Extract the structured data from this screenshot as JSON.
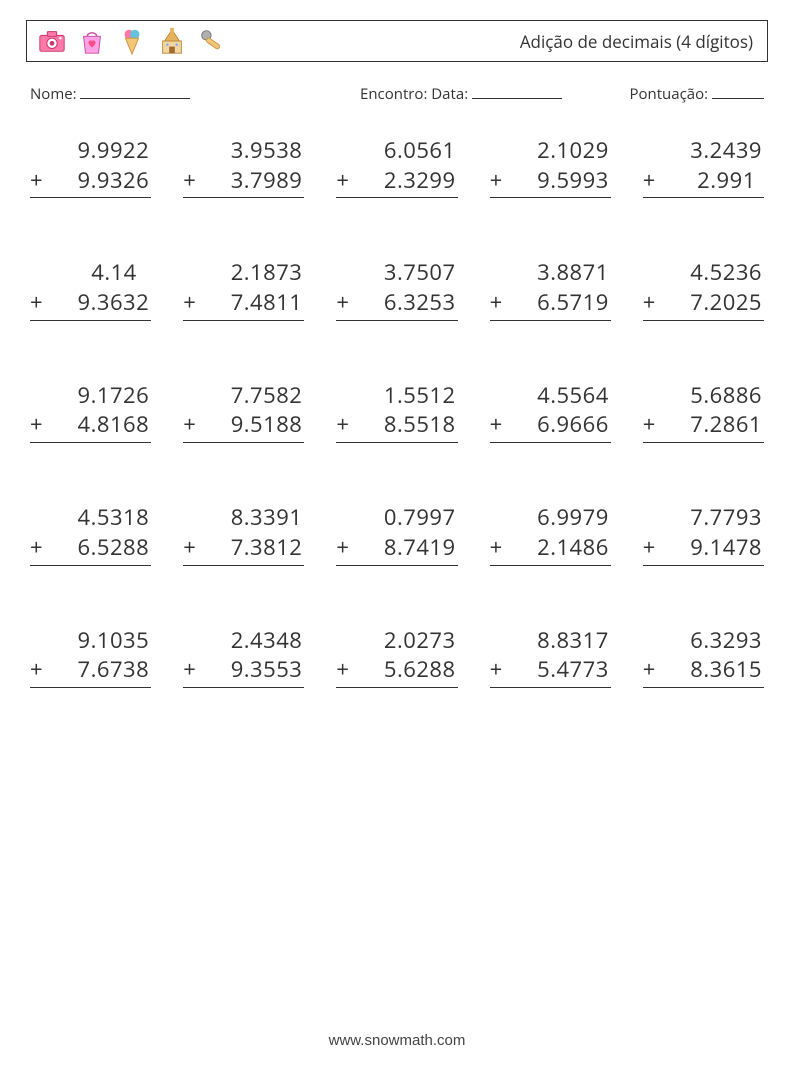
{
  "header": {
    "title": "Adição de decimais (4 dígitos)",
    "icons": [
      "camera-icon",
      "bag-icon",
      "icecream-icon",
      "church-icon",
      "microphone-icon"
    ]
  },
  "meta": {
    "name_label": "Nome:",
    "encounter_label": "Encontro:",
    "date_label": "Data:",
    "score_label": "Pontuação:",
    "blank_widths": {
      "name": 110,
      "date": 90,
      "score": 52
    }
  },
  "worksheet": {
    "operator": "+",
    "columns": 5,
    "font_size": 22,
    "text_color": "#333333",
    "rule_color": "#333333",
    "problems": [
      {
        "a": "9.9922",
        "b": "9.9326"
      },
      {
        "a": "3.9538",
        "b": "3.7989"
      },
      {
        "a": "6.0561",
        "b": "2.3299"
      },
      {
        "a": "2.1029",
        "b": "9.5993"
      },
      {
        "a": "3.2439",
        "b": "2.991 "
      },
      {
        "a": "4.14  ",
        "b": "9.3632"
      },
      {
        "a": "2.1873",
        "b": "7.4811"
      },
      {
        "a": "3.7507",
        "b": "6.3253"
      },
      {
        "a": "3.8871",
        "b": "6.5719"
      },
      {
        "a": "4.5236",
        "b": "7.2025"
      },
      {
        "a": "9.1726",
        "b": "4.8168"
      },
      {
        "a": "7.7582",
        "b": "9.5188"
      },
      {
        "a": "1.5512",
        "b": "8.5518"
      },
      {
        "a": "4.5564",
        "b": "6.9666"
      },
      {
        "a": "5.6886",
        "b": "7.2861"
      },
      {
        "a": "4.5318",
        "b": "6.5288"
      },
      {
        "a": "8.3391",
        "b": "7.3812"
      },
      {
        "a": "0.7997",
        "b": "8.7419"
      },
      {
        "a": "6.9979",
        "b": "2.1486"
      },
      {
        "a": "7.7793",
        "b": "9.1478"
      },
      {
        "a": "9.1035",
        "b": "7.6738"
      },
      {
        "a": "2.4348",
        "b": "9.3553"
      },
      {
        "a": "2.0273",
        "b": "5.6288"
      },
      {
        "a": "8.8317",
        "b": "5.4773"
      },
      {
        "a": "6.3293",
        "b": "8.3615"
      }
    ]
  },
  "footer": {
    "text": "www.snowmath.com"
  },
  "colors": {
    "background": "#ffffff",
    "border": "#333333",
    "text": "#333333"
  }
}
